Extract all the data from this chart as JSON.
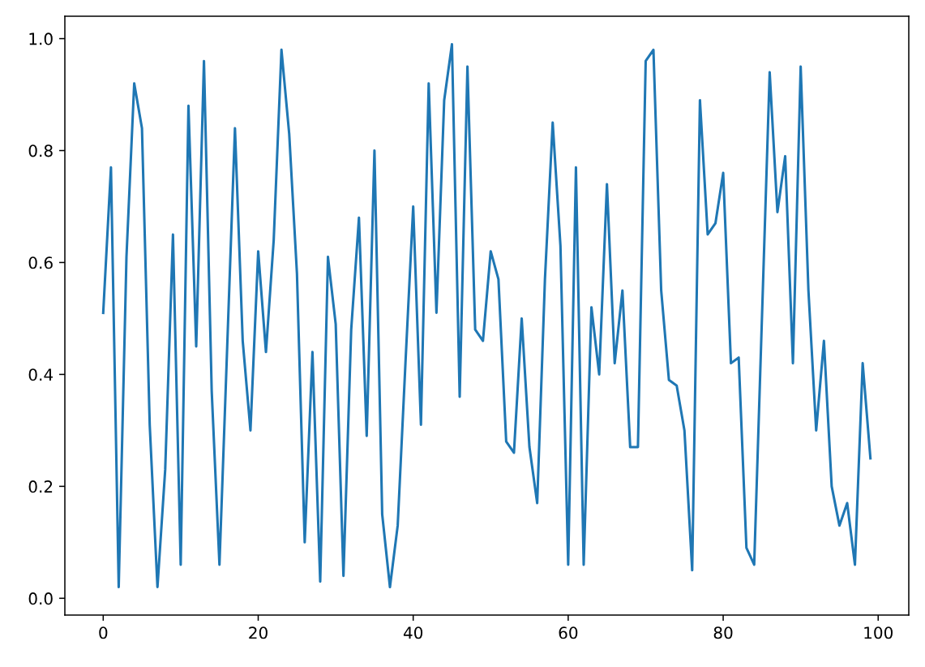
{
  "chart_data": {
    "type": "line",
    "x": [
      0,
      1,
      2,
      3,
      4,
      5,
      6,
      7,
      8,
      9,
      10,
      11,
      12,
      13,
      14,
      15,
      16,
      17,
      18,
      19,
      20,
      21,
      22,
      23,
      24,
      25,
      26,
      27,
      28,
      29,
      30,
      31,
      32,
      33,
      34,
      35,
      36,
      37,
      38,
      39,
      40,
      41,
      42,
      43,
      44,
      45,
      46,
      47,
      48,
      49,
      50,
      51,
      52,
      53,
      54,
      55,
      56,
      57,
      58,
      59,
      60,
      61,
      62,
      63,
      64,
      65,
      66,
      67,
      68,
      69,
      70,
      71,
      72,
      73,
      74,
      75,
      76,
      77,
      78,
      79,
      80,
      81,
      82,
      83,
      84,
      85,
      86,
      87,
      88,
      89,
      90,
      91,
      92,
      93,
      94,
      95,
      96,
      97,
      98,
      99
    ],
    "series": [
      {
        "color": "#1f77b4",
        "values": [
          0.51,
          0.77,
          0.02,
          0.61,
          0.92,
          0.84,
          0.31,
          0.02,
          0.23,
          0.65,
          0.06,
          0.88,
          0.45,
          0.96,
          0.37,
          0.06,
          0.45,
          0.84,
          0.46,
          0.3,
          0.62,
          0.44,
          0.64,
          0.98,
          0.83,
          0.58,
          0.1,
          0.44,
          0.03,
          0.61,
          0.49,
          0.04,
          0.48,
          0.68,
          0.29,
          0.8,
          0.15,
          0.02,
          0.13,
          0.42,
          0.7,
          0.31,
          0.92,
          0.51,
          0.89,
          0.99,
          0.36,
          0.95,
          0.48,
          0.46,
          0.62,
          0.57,
          0.28,
          0.26,
          0.5,
          0.27,
          0.17,
          0.57,
          0.85,
          0.63,
          0.06,
          0.77,
          0.06,
          0.52,
          0.4,
          0.74,
          0.42,
          0.55,
          0.27,
          0.27,
          0.96,
          0.98,
          0.55,
          0.39,
          0.38,
          0.3,
          0.05,
          0.89,
          0.65,
          0.67,
          0.76,
          0.42,
          0.43,
          0.09,
          0.06,
          0.5,
          0.94,
          0.69,
          0.79,
          0.42,
          0.95,
          0.55,
          0.3,
          0.46,
          0.2,
          0.13,
          0.17,
          0.06,
          0.42,
          0.25
        ]
      }
    ],
    "xlim": [
      -4.95,
      103.95
    ],
    "ylim": [
      -0.03,
      1.04
    ],
    "xticks": [
      0,
      20,
      40,
      60,
      80,
      100
    ],
    "yticks": [
      {
        "value": 0,
        "label": "0.0"
      },
      0.2,
      0.4,
      0.6,
      0.8,
      {
        "value": 1,
        "label": "1.0"
      }
    ]
  }
}
